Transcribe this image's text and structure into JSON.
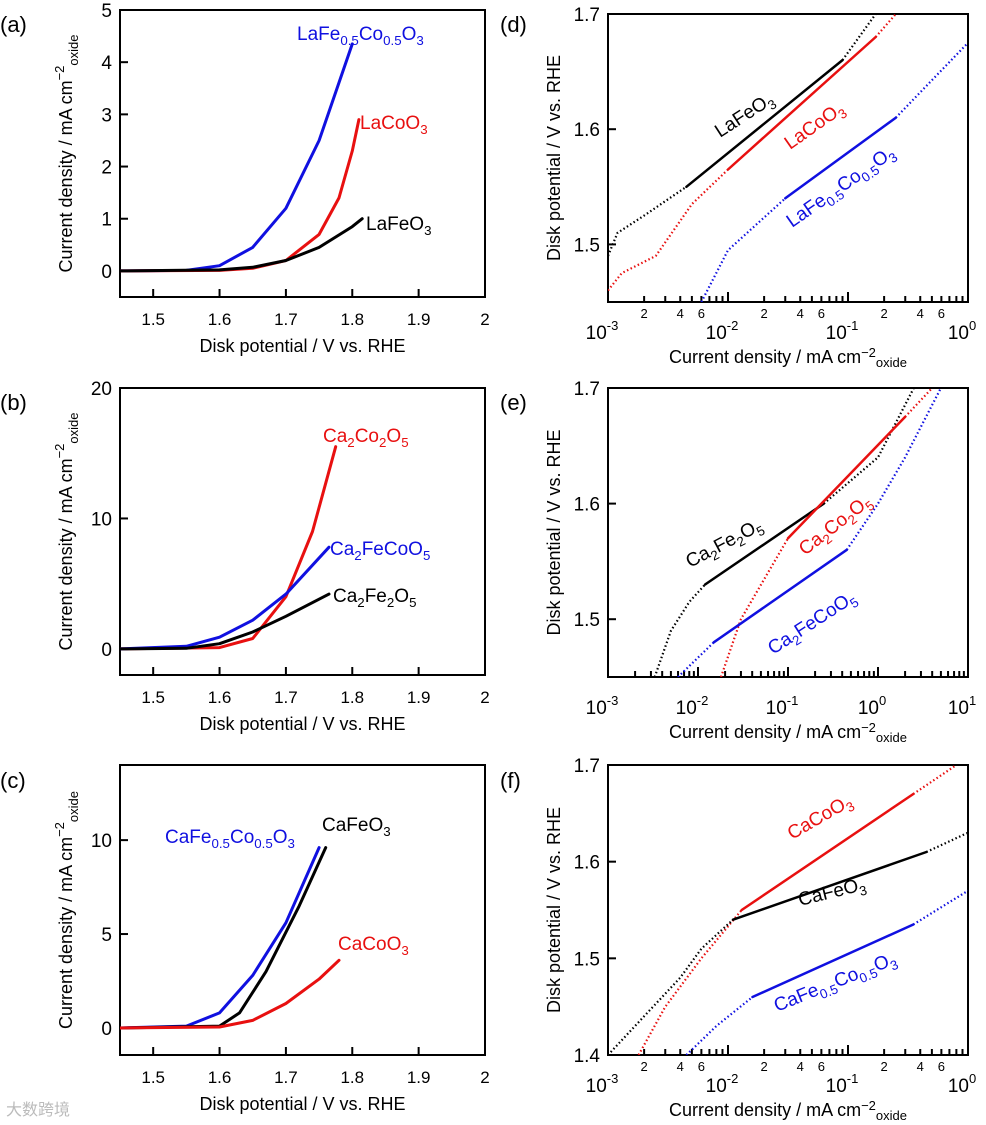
{
  "watermark": "大数跨境",
  "chart_data": [
    {
      "panel": "(a)",
      "type": "line",
      "xscale": "linear",
      "xlim": [
        1.45,
        2
      ],
      "ylim": [
        -0.5,
        5
      ],
      "xticks": [
        1.5,
        1.6,
        1.7,
        1.8,
        1.9,
        2
      ],
      "yticks": [
        0,
        1,
        2,
        3,
        4,
        5
      ],
      "xlabel": "Disk potential / V vs. RHE",
      "ylabel": "Current density / mA cm",
      "ylabel_sup": "−2",
      "ylabel_sub": "oxide",
      "series": [
        {
          "name": "LaFe0.5Co0.5O3",
          "color": "#1010e0",
          "solid": [
            [
              1.45,
              0
            ],
            [
              1.55,
              0.01
            ],
            [
              1.6,
              0.1
            ],
            [
              1.65,
              0.45
            ],
            [
              1.7,
              1.2
            ],
            [
              1.75,
              2.5
            ],
            [
              1.8,
              4.35
            ]
          ]
        },
        {
          "name": "LaCoO3",
          "color": "#e81010",
          "solid": [
            [
              1.45,
              0
            ],
            [
              1.6,
              0.01
            ],
            [
              1.65,
              0.05
            ],
            [
              1.7,
              0.2
            ],
            [
              1.75,
              0.7
            ],
            [
              1.78,
              1.4
            ],
            [
              1.8,
              2.3
            ],
            [
              1.81,
              2.9
            ]
          ]
        },
        {
          "name": "LaFeO3",
          "color": "#000000",
          "solid": [
            [
              1.45,
              0
            ],
            [
              1.6,
              0.02
            ],
            [
              1.65,
              0.07
            ],
            [
              1.7,
              0.2
            ],
            [
              1.75,
              0.45
            ],
            [
              1.8,
              0.85
            ],
            [
              1.815,
              1.0
            ]
          ]
        }
      ]
    },
    {
      "panel": "(b)",
      "type": "line",
      "xscale": "linear",
      "xlim": [
        1.45,
        2
      ],
      "ylim": [
        -2,
        20
      ],
      "xticks": [
        1.5,
        1.6,
        1.7,
        1.8,
        1.9,
        2
      ],
      "yticks": [
        0,
        10,
        20
      ],
      "xlabel": "Disk potential / V vs. RHE",
      "ylabel": "Current density / mA cm",
      "ylabel_sup": "−2",
      "ylabel_sub": "oxide",
      "series": [
        {
          "name": "Ca2Co2O5",
          "color": "#e81010",
          "solid": [
            [
              1.45,
              0
            ],
            [
              1.6,
              0.1
            ],
            [
              1.65,
              0.8
            ],
            [
              1.7,
              4
            ],
            [
              1.74,
              9
            ],
            [
              1.775,
              15.5
            ]
          ]
        },
        {
          "name": "Ca2FeCoO5",
          "color": "#1010e0",
          "solid": [
            [
              1.45,
              0
            ],
            [
              1.55,
              0.2
            ],
            [
              1.6,
              0.9
            ],
            [
              1.65,
              2.2
            ],
            [
              1.7,
              4.2
            ],
            [
              1.765,
              7.8
            ]
          ]
        },
        {
          "name": "Ca2Fe2O5",
          "color": "#000000",
          "solid": [
            [
              1.45,
              0
            ],
            [
              1.55,
              0.05
            ],
            [
              1.6,
              0.4
            ],
            [
              1.65,
              1.3
            ],
            [
              1.7,
              2.5
            ],
            [
              1.765,
              4.2
            ]
          ]
        }
      ]
    },
    {
      "panel": "(c)",
      "type": "line",
      "xscale": "linear",
      "xlim": [
        1.45,
        2
      ],
      "ylim": [
        -1.44,
        14
      ],
      "xticks": [
        1.5,
        1.6,
        1.7,
        1.8,
        1.9,
        2
      ],
      "yticks": [
        0,
        5,
        10
      ],
      "xlabel": "Disk potential / V vs. RHE",
      "ylabel": "Current density / mA cm",
      "ylabel_sup": "−2",
      "ylabel_sub": "oxide",
      "series": [
        {
          "name": "CaFe0.5Co0.5O3",
          "color": "#1010e0",
          "solid": [
            [
              1.45,
              0
            ],
            [
              1.55,
              0.1
            ],
            [
              1.6,
              0.8
            ],
            [
              1.65,
              2.8
            ],
            [
              1.7,
              5.6
            ],
            [
              1.75,
              9.6
            ]
          ]
        },
        {
          "name": "CaFeO3",
          "color": "#000000",
          "solid": [
            [
              1.45,
              0
            ],
            [
              1.6,
              0.1
            ],
            [
              1.63,
              0.8
            ],
            [
              1.67,
              3
            ],
            [
              1.72,
              6.5
            ],
            [
              1.76,
              9.6
            ]
          ]
        },
        {
          "name": "CaCoO3",
          "color": "#e81010",
          "solid": [
            [
              1.45,
              0
            ],
            [
              1.6,
              0.05
            ],
            [
              1.65,
              0.4
            ],
            [
              1.7,
              1.3
            ],
            [
              1.75,
              2.6
            ],
            [
              1.78,
              3.6
            ]
          ]
        }
      ]
    },
    {
      "panel": "(d)",
      "type": "line",
      "xscale": "log",
      "xlim": [
        0.001,
        1
      ],
      "ylim": [
        1.45,
        1.7
      ],
      "xdecades": [
        -3,
        -2,
        -1,
        0
      ],
      "minor_labels": [
        2,
        4,
        6
      ],
      "yticks": [
        1.5,
        1.6,
        1.7
      ],
      "xlabel": "Current density / mA cm",
      "xlabel_sup": "−2",
      "xlabel_sub": "oxide",
      "ylabel": "Disk potential / V vs. RHE",
      "series": [
        {
          "name": "LaFeO3",
          "color": "#000000",
          "dotted_pre": [
            [
              0.001,
              1.49
            ],
            [
              0.0012,
              1.51
            ],
            [
              0.002,
              1.525
            ],
            [
              0.0045,
              1.55
            ]
          ],
          "solid": [
            [
              0.0045,
              1.55
            ],
            [
              0.09,
              1.66
            ]
          ],
          "dotted_post": [
            [
              0.09,
              1.66
            ],
            [
              0.17,
              1.7
            ]
          ]
        },
        {
          "name": "LaCoO3",
          "color": "#e81010",
          "dotted_pre": [
            [
              0.001,
              1.46
            ],
            [
              0.0013,
              1.475
            ],
            [
              0.0025,
              1.49
            ],
            [
              0.005,
              1.535
            ],
            [
              0.01,
              1.565
            ]
          ],
          "solid": [
            [
              0.01,
              1.565
            ],
            [
              0.17,
              1.68
            ]
          ],
          "dotted_post": [
            [
              0.17,
              1.68
            ],
            [
              0.25,
              1.7
            ]
          ]
        },
        {
          "name": "LaFe0.5Co0.5O3",
          "color": "#1010e0",
          "dotted_pre": [
            [
              0.006,
              1.45
            ],
            [
              0.01,
              1.495
            ],
            [
              0.03,
              1.54
            ]
          ],
          "solid": [
            [
              0.03,
              1.54
            ],
            [
              0.25,
              1.61
            ]
          ],
          "dotted_post": [
            [
              0.25,
              1.61
            ],
            [
              1,
              1.675
            ]
          ]
        }
      ]
    },
    {
      "panel": "(e)",
      "type": "line",
      "xscale": "log",
      "xlim": [
        0.001,
        10
      ],
      "ylim": [
        1.45,
        1.7
      ],
      "xdecades": [
        -3,
        -2,
        -1,
        0,
        1
      ],
      "minor_labels": [],
      "yticks": [
        1.5,
        1.6,
        1.7
      ],
      "xlabel": "Current density / mA cm",
      "xlabel_sup": "−2",
      "xlabel_sub": "oxide",
      "ylabel": "Disk potential / V vs. RHE",
      "series": [
        {
          "name": "Ca2Fe2O5",
          "color": "#000000",
          "dotted_pre": [
            [
              0.0033,
              1.45
            ],
            [
              0.005,
              1.49
            ],
            [
              0.008,
              1.515
            ],
            [
              0.012,
              1.53
            ]
          ],
          "solid": [
            [
              0.012,
              1.53
            ],
            [
              0.25,
              1.6
            ]
          ],
          "dotted_post": [
            [
              0.25,
              1.6
            ],
            [
              1,
              1.64
            ],
            [
              2.5,
              1.7
            ]
          ]
        },
        {
          "name": "Ca2Co2O5",
          "color": "#e81010",
          "dotted_pre": [
            [
              0.018,
              1.45
            ],
            [
              0.03,
              1.5
            ],
            [
              0.1,
              1.57
            ]
          ],
          "solid": [
            [
              0.1,
              1.57
            ],
            [
              2,
              1.675
            ]
          ],
          "dotted_post": [
            [
              2,
              1.675
            ],
            [
              4,
              1.7
            ]
          ]
        },
        {
          "name": "Ca2FeCoO5",
          "color": "#1010e0",
          "dotted_pre": [
            [
              0.006,
              1.45
            ],
            [
              0.015,
              1.48
            ]
          ],
          "solid": [
            [
              0.015,
              1.48
            ],
            [
              0.45,
              1.56
            ]
          ],
          "dotted_post": [
            [
              0.45,
              1.56
            ],
            [
              1,
              1.6
            ],
            [
              2,
              1.64
            ],
            [
              5,
              1.7
            ]
          ]
        }
      ]
    },
    {
      "panel": "(f)",
      "type": "line",
      "xscale": "log",
      "xlim": [
        0.001,
        1
      ],
      "ylim": [
        1.4,
        1.7
      ],
      "xdecades": [
        -3,
        -2,
        -1,
        0
      ],
      "minor_labels": [
        2,
        4,
        6
      ],
      "yticks": [
        1.4,
        1.5,
        1.6,
        1.7
      ],
      "xlabel": "Current density / mA cm",
      "xlabel_sup": "−2",
      "xlabel_sub": "oxide",
      "ylabel": "Disk potential / V vs. RHE",
      "series": [
        {
          "name": "CaCoO3",
          "color": "#e81010",
          "dotted_pre": [
            [
              0.0018,
              1.4
            ],
            [
              0.003,
              1.45
            ],
            [
              0.006,
              1.5
            ],
            [
              0.013,
              1.55
            ]
          ],
          "solid": [
            [
              0.013,
              1.55
            ],
            [
              0.35,
              1.67
            ]
          ],
          "dotted_post": [
            [
              0.35,
              1.67
            ],
            [
              0.8,
              1.7
            ]
          ]
        },
        {
          "name": "CaFeO3",
          "color": "#000000",
          "dotted_pre": [
            [
              0.001,
              1.4
            ],
            [
              0.002,
              1.44
            ],
            [
              0.004,
              1.48
            ],
            [
              0.006,
              1.51
            ],
            [
              0.011,
              1.54
            ]
          ],
          "solid": [
            [
              0.011,
              1.54
            ],
            [
              0.45,
              1.61
            ]
          ],
          "dotted_post": [
            [
              0.45,
              1.61
            ],
            [
              1,
              1.63
            ]
          ]
        },
        {
          "name": "CaFe0.5Co0.5O3",
          "color": "#1010e0",
          "dotted_pre": [
            [
              0.0045,
              1.4
            ],
            [
              0.008,
              1.43
            ],
            [
              0.016,
              1.46
            ]
          ],
          "solid": [
            [
              0.016,
              1.46
            ],
            [
              0.35,
              1.535
            ]
          ],
          "dotted_post": [
            [
              0.35,
              1.535
            ],
            [
              1,
              1.57
            ]
          ]
        }
      ]
    }
  ]
}
